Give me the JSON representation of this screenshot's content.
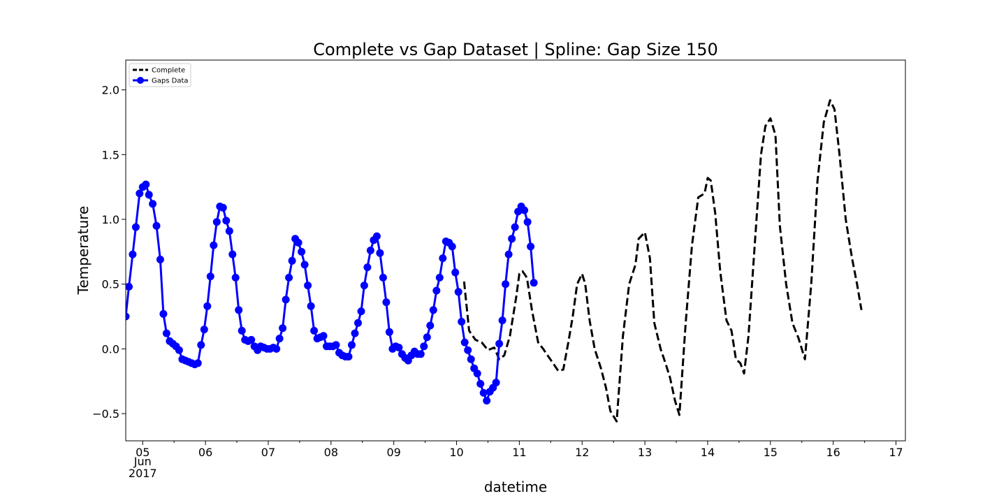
{
  "chart_data": {
    "type": "line",
    "title": "Complete vs Gap Dataset  | Spline: Gap Size 150",
    "xlabel": "datetime",
    "ylabel": "Temperature",
    "xlim": [
      4.73,
      17.15
    ],
    "ylim": [
      -0.71,
      2.23
    ],
    "x_ticks": [
      {
        "value": 5,
        "label": "05"
      },
      {
        "value": 6,
        "label": "06"
      },
      {
        "value": 7,
        "label": "07"
      },
      {
        "value": 8,
        "label": "08"
      },
      {
        "value": 9,
        "label": "09"
      },
      {
        "value": 10,
        "label": "10"
      },
      {
        "value": 11,
        "label": "11"
      },
      {
        "value": 12,
        "label": "12"
      },
      {
        "value": 13,
        "label": "13"
      },
      {
        "value": 14,
        "label": "14"
      },
      {
        "value": 15,
        "label": "15"
      },
      {
        "value": 16,
        "label": "16"
      },
      {
        "value": 17,
        "label": "17"
      }
    ],
    "x_tick_extra": {
      "month": "Jun",
      "year": "2017"
    },
    "y_ticks": [
      {
        "value": -0.5,
        "label": "−0.5"
      },
      {
        "value": 0.0,
        "label": "0.0"
      },
      {
        "value": 0.5,
        "label": "0.5"
      },
      {
        "value": 1.0,
        "label": "1.0"
      },
      {
        "value": 1.5,
        "label": "1.5"
      },
      {
        "value": 2.0,
        "label": "2.0"
      }
    ],
    "grid": false,
    "legend_position": "top-left",
    "series": [
      {
        "name": "Complete",
        "color": "#000000",
        "style": "dashed",
        "points": [
          [
            10.12,
            0.52
          ],
          [
            10.2,
            0.14
          ],
          [
            10.3,
            0.07
          ],
          [
            10.4,
            0.05
          ],
          [
            10.5,
            -0.01
          ],
          [
            10.6,
            0.01
          ],
          [
            10.68,
            -0.08
          ],
          [
            10.76,
            -0.05
          ],
          [
            10.85,
            0.1
          ],
          [
            10.95,
            0.4
          ],
          [
            11.0,
            0.58
          ],
          [
            11.05,
            0.6
          ],
          [
            11.12,
            0.55
          ],
          [
            11.2,
            0.3
          ],
          [
            11.3,
            0.05
          ],
          [
            11.38,
            0.0
          ],
          [
            11.45,
            -0.05
          ],
          [
            11.55,
            -0.12
          ],
          [
            11.62,
            -0.17
          ],
          [
            11.7,
            -0.16
          ],
          [
            11.78,
            0.05
          ],
          [
            11.85,
            0.25
          ],
          [
            11.92,
            0.5
          ],
          [
            12.0,
            0.58
          ],
          [
            12.05,
            0.5
          ],
          [
            12.12,
            0.22
          ],
          [
            12.2,
            0.0
          ],
          [
            12.3,
            -0.15
          ],
          [
            12.38,
            -0.3
          ],
          [
            12.45,
            -0.48
          ],
          [
            12.55,
            -0.56
          ],
          [
            12.65,
            0.1
          ],
          [
            12.75,
            0.5
          ],
          [
            12.85,
            0.65
          ],
          [
            12.9,
            0.85
          ],
          [
            13.0,
            0.9
          ],
          [
            13.08,
            0.7
          ],
          [
            13.15,
            0.2
          ],
          [
            13.25,
            0.0
          ],
          [
            13.32,
            -0.1
          ],
          [
            13.4,
            -0.22
          ],
          [
            13.48,
            -0.4
          ],
          [
            13.55,
            -0.51
          ],
          [
            13.65,
            0.2
          ],
          [
            13.75,
            0.8
          ],
          [
            13.85,
            1.17
          ],
          [
            13.95,
            1.2
          ],
          [
            14.0,
            1.32
          ],
          [
            14.05,
            1.3
          ],
          [
            14.12,
            1.05
          ],
          [
            14.2,
            0.6
          ],
          [
            14.3,
            0.22
          ],
          [
            14.38,
            0.14
          ],
          [
            14.45,
            -0.08
          ],
          [
            14.52,
            -0.11
          ],
          [
            14.58,
            -0.19
          ],
          [
            14.65,
            0.1
          ],
          [
            14.75,
            0.8
          ],
          [
            14.85,
            1.5
          ],
          [
            14.92,
            1.72
          ],
          [
            15.0,
            1.78
          ],
          [
            15.08,
            1.65
          ],
          [
            15.15,
            0.95
          ],
          [
            15.25,
            0.5
          ],
          [
            15.35,
            0.2
          ],
          [
            15.45,
            0.08
          ],
          [
            15.55,
            -0.08
          ],
          [
            15.65,
            0.5
          ],
          [
            15.75,
            1.3
          ],
          [
            15.85,
            1.75
          ],
          [
            15.95,
            1.92
          ],
          [
            16.02,
            1.85
          ],
          [
            16.1,
            1.5
          ],
          [
            16.2,
            1.0
          ],
          [
            16.3,
            0.7
          ],
          [
            16.38,
            0.5
          ],
          [
            16.45,
            0.3
          ]
        ]
      },
      {
        "name": "Gaps Data",
        "color": "#0000ff",
        "style": "solid-markers",
        "points": [
          [
            4.73,
            0.25
          ],
          [
            4.78,
            0.48
          ],
          [
            4.84,
            0.73
          ],
          [
            4.89,
            0.94
          ],
          [
            4.95,
            1.2
          ],
          [
            5.0,
            1.25
          ],
          [
            5.05,
            1.27
          ],
          [
            5.1,
            1.19
          ],
          [
            5.16,
            1.12
          ],
          [
            5.22,
            0.95
          ],
          [
            5.28,
            0.69
          ],
          [
            5.33,
            0.27
          ],
          [
            5.38,
            0.12
          ],
          [
            5.43,
            0.06
          ],
          [
            5.48,
            0.04
          ],
          [
            5.53,
            0.02
          ],
          [
            5.58,
            -0.01
          ],
          [
            5.63,
            -0.08
          ],
          [
            5.68,
            -0.09
          ],
          [
            5.73,
            -0.1
          ],
          [
            5.78,
            -0.11
          ],
          [
            5.83,
            -0.12
          ],
          [
            5.88,
            -0.11
          ],
          [
            5.93,
            0.03
          ],
          [
            5.98,
            0.15
          ],
          [
            6.03,
            0.33
          ],
          [
            6.08,
            0.56
          ],
          [
            6.13,
            0.8
          ],
          [
            6.18,
            0.98
          ],
          [
            6.23,
            1.1
          ],
          [
            6.28,
            1.09
          ],
          [
            6.33,
            0.99
          ],
          [
            6.38,
            0.91
          ],
          [
            6.43,
            0.73
          ],
          [
            6.48,
            0.55
          ],
          [
            6.53,
            0.3
          ],
          [
            6.58,
            0.14
          ],
          [
            6.63,
            0.07
          ],
          [
            6.68,
            0.06
          ],
          [
            6.73,
            0.07
          ],
          [
            6.78,
            0.02
          ],
          [
            6.83,
            -0.01
          ],
          [
            6.88,
            0.02
          ],
          [
            6.93,
            0.01
          ],
          [
            6.98,
            0.0
          ],
          [
            7.03,
            0.0
          ],
          [
            7.08,
            0.01
          ],
          [
            7.13,
            0.0
          ],
          [
            7.18,
            0.08
          ],
          [
            7.23,
            0.16
          ],
          [
            7.28,
            0.38
          ],
          [
            7.33,
            0.55
          ],
          [
            7.38,
            0.68
          ],
          [
            7.43,
            0.85
          ],
          [
            7.48,
            0.82
          ],
          [
            7.53,
            0.75
          ],
          [
            7.58,
            0.65
          ],
          [
            7.63,
            0.49
          ],
          [
            7.68,
            0.33
          ],
          [
            7.73,
            0.14
          ],
          [
            7.78,
            0.08
          ],
          [
            7.83,
            0.09
          ],
          [
            7.88,
            0.1
          ],
          [
            7.93,
            0.02
          ],
          [
            7.98,
            0.02
          ],
          [
            8.03,
            0.02
          ],
          [
            8.08,
            0.03
          ],
          [
            8.13,
            -0.03
          ],
          [
            8.18,
            -0.05
          ],
          [
            8.23,
            -0.06
          ],
          [
            8.28,
            -0.06
          ],
          [
            8.33,
            0.03
          ],
          [
            8.38,
            0.12
          ],
          [
            8.43,
            0.2
          ],
          [
            8.48,
            0.29
          ],
          [
            8.53,
            0.49
          ],
          [
            8.58,
            0.63
          ],
          [
            8.63,
            0.76
          ],
          [
            8.68,
            0.84
          ],
          [
            8.73,
            0.87
          ],
          [
            8.78,
            0.74
          ],
          [
            8.83,
            0.55
          ],
          [
            8.88,
            0.36
          ],
          [
            8.93,
            0.13
          ],
          [
            8.98,
            0.0
          ],
          [
            9.03,
            0.02
          ],
          [
            9.08,
            0.01
          ],
          [
            9.13,
            -0.04
          ],
          [
            9.18,
            -0.07
          ],
          [
            9.23,
            -0.09
          ],
          [
            9.28,
            -0.05
          ],
          [
            9.33,
            -0.02
          ],
          [
            9.38,
            -0.04
          ],
          [
            9.43,
            -0.04
          ],
          [
            9.48,
            0.02
          ],
          [
            9.53,
            0.09
          ],
          [
            9.58,
            0.18
          ],
          [
            9.63,
            0.3
          ],
          [
            9.68,
            0.45
          ],
          [
            9.73,
            0.55
          ],
          [
            9.78,
            0.7
          ],
          [
            9.83,
            0.83
          ],
          [
            9.88,
            0.82
          ],
          [
            9.93,
            0.79
          ],
          [
            9.98,
            0.59
          ],
          [
            10.03,
            0.44
          ],
          [
            10.08,
            0.21
          ],
          [
            10.13,
            0.05
          ],
          [
            10.18,
            -0.01
          ],
          [
            10.23,
            -0.08
          ],
          [
            10.28,
            -0.15
          ],
          [
            10.33,
            -0.19
          ],
          [
            10.38,
            -0.27
          ],
          [
            10.43,
            -0.34
          ],
          [
            10.48,
            -0.4
          ],
          [
            10.53,
            -0.33
          ],
          [
            10.58,
            -0.3
          ],
          [
            10.63,
            -0.26
          ],
          [
            10.68,
            0.04
          ],
          [
            10.73,
            0.22
          ],
          [
            10.78,
            0.5
          ],
          [
            10.83,
            0.73
          ],
          [
            10.88,
            0.85
          ],
          [
            10.93,
            0.94
          ],
          [
            10.98,
            1.06
          ],
          [
            11.03,
            1.1
          ],
          [
            11.08,
            1.07
          ],
          [
            11.13,
            0.98
          ],
          [
            11.18,
            0.79
          ],
          [
            11.23,
            0.51
          ]
        ]
      }
    ]
  }
}
